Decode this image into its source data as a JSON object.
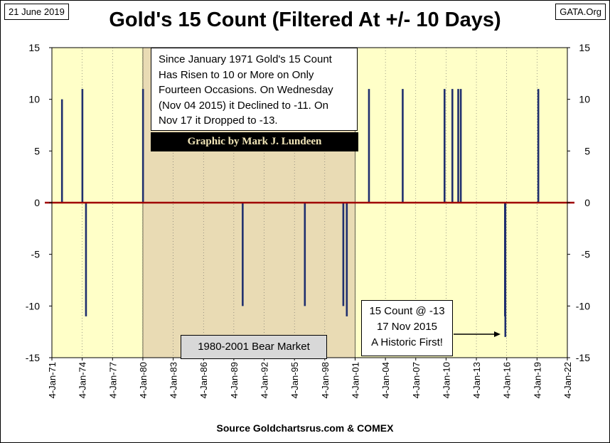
{
  "header": {
    "date_tag": "21 June 2019",
    "site_tag": "GATA.Org",
    "title": "Gold's 15 Count (Filtered At +/- 10 Days)"
  },
  "footer": {
    "source": "Source Goldchartsrus.com & COMEX"
  },
  "annotations": {
    "info_lines": [
      "Since January 1971 Gold's 15 Count",
      "Has Risen to 10 or More on Only",
      "Fourteen Occasions.  On Wednesday",
      "(Nov 04 2015) it Declined to -11.  On",
      "Nov 17 it Dropped to -13."
    ],
    "credit": "Graphic by Mark J. Lundeen",
    "bear_market": "1980-2001 Bear Market",
    "record_lines": [
      "15 Count @ -13",
      "17 Nov 2015",
      "A Historic First!"
    ]
  },
  "colors": {
    "plot_bg": "#ffffc8",
    "bear_shade": "#e9dbb4",
    "bar": "#1f2f6e",
    "zero_line": "#a00000",
    "grid": "#606060"
  },
  "chart_data": {
    "type": "bar",
    "title": "Gold's 15 Count (Filtered At +/- 10 Days)",
    "x_range": [
      "1971-01-04",
      "2022-01-04"
    ],
    "x_tick_labels": [
      "4-Jan-71",
      "4-Jan-74",
      "4-Jan-77",
      "4-Jan-80",
      "4-Jan-83",
      "4-Jan-86",
      "4-Jan-89",
      "4-Jan-92",
      "4-Jan-95",
      "4-Jan-98",
      "4-Jan-01",
      "4-Jan-04",
      "4-Jan-07",
      "4-Jan-10",
      "4-Jan-13",
      "4-Jan-16",
      "4-Jan-19",
      "4-Jan-22"
    ],
    "ylim": [
      -15,
      15
    ],
    "y_ticks": [
      -15,
      -10,
      -5,
      0,
      5,
      10,
      15
    ],
    "y_tick_labels": [
      "-15",
      "-10",
      "-5",
      "0",
      "5",
      "10",
      "15"
    ],
    "grid": "vertical",
    "shaded_period": [
      "1980-01-04",
      "2001-01-04"
    ],
    "series": [
      {
        "x": [
          "1972-01-04",
          "1974-01-10",
          "1974-05-20",
          "1980-01-10",
          "1989-11-20",
          "1996-01-15",
          "1999-11-05",
          "2000-03-10",
          "2002-05-20",
          "2005-09-20",
          "2009-11-10",
          "2010-08-20",
          "2011-03-20",
          "2011-06-20",
          "2015-11-04",
          "2015-11-17",
          "2019-02-20"
        ],
        "values": [
          10,
          11,
          -11,
          11,
          -10,
          -10,
          -10,
          -11,
          11,
          11,
          11,
          11,
          11,
          11,
          -11,
          -13,
          11
        ]
      }
    ]
  }
}
